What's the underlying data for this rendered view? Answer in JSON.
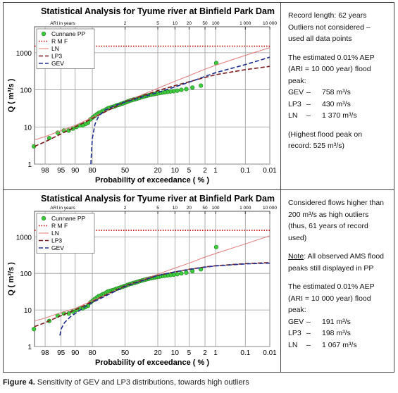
{
  "chart_data": [
    {
      "type": "line",
      "title": "Statistical Analysis for Tyume river at Binfield Park Dam",
      "xlabel": "Probability of exceedance ( % )",
      "ylabel": "Q  ( m³/s )",
      "x2label": "ARI in years",
      "xlim": [
        99,
        0.01
      ],
      "ylim": [
        1,
        5000
      ],
      "log_y": true,
      "grid": true,
      "legend": "upper left",
      "xticks": [
        98,
        95,
        90,
        80,
        50,
        20,
        10,
        5,
        2,
        1,
        0.1,
        0.01
      ],
      "x2ticks": [
        {
          "value": 50,
          "label": "2"
        },
        {
          "value": 20,
          "label": "5"
        },
        {
          "value": 10,
          "label": "10"
        },
        {
          "value": 5,
          "label": "20"
        },
        {
          "value": 2,
          "label": "50"
        },
        {
          "value": 1,
          "label": "100"
        },
        {
          "value": 0.1,
          "label": "1 000"
        },
        {
          "value": 0.01,
          "label": "10 000"
        }
      ],
      "yticks": [
        1,
        10,
        100,
        1000
      ],
      "series": [
        {
          "name": "Cunnane PP",
          "style": "markers",
          "color": "#3ccc3c",
          "x": [
            0.96,
            2.57,
            4.18,
            5.79,
            7.4,
            9.0,
            10.61,
            12.22,
            13.83,
            15.43,
            17.04,
            18.65,
            20.26,
            21.86,
            23.47,
            25.08,
            26.69,
            28.3,
            29.9,
            31.51,
            33.12,
            34.73,
            36.33,
            37.94,
            39.55,
            41.16,
            42.77,
            44.37,
            45.98,
            47.59,
            49.2,
            50.8,
            52.41,
            54.02,
            55.63,
            57.23,
            58.84,
            60.45,
            62.06,
            63.67,
            65.27,
            66.88,
            68.49,
            70.1,
            71.7,
            73.31,
            74.92,
            76.53,
            78.14,
            79.74,
            81.35,
            82.96,
            84.57,
            86.17,
            87.78,
            89.39,
            91.0,
            92.6,
            94.21,
            95.82,
            97.43,
            99.04
          ],
          "values": [
            525,
            130,
            115,
            105,
            100,
            95,
            92,
            90,
            88,
            86,
            84,
            82,
            80,
            78,
            76,
            74,
            72,
            70,
            68,
            66,
            64,
            62,
            60,
            58,
            56,
            55,
            53,
            52,
            50,
            48,
            46,
            45,
            43,
            42,
            40,
            39,
            38,
            36,
            35,
            34,
            33,
            32,
            30,
            28,
            27,
            25,
            24,
            22,
            20,
            18,
            16,
            13,
            12,
            11,
            11,
            10,
            9,
            8,
            8,
            7,
            5,
            3
          ]
        },
        {
          "name": "R M F",
          "style": "dotted",
          "color": "#c00000",
          "x": [
            99,
            0.01
          ],
          "values": [
            1500,
            1500
          ]
        },
        {
          "name": "LN",
          "style": "solid",
          "color": "#e07a7a",
          "x": [
            99,
            98,
            95,
            90,
            80,
            50,
            20,
            10,
            5,
            2,
            1,
            0.1,
            0.01
          ],
          "values": [
            4.5,
            5.5,
            8,
            11,
            18,
            48,
            110,
            170,
            240,
            360,
            460,
            850,
            1370
          ]
        },
        {
          "name": "LP3",
          "style": "dashed",
          "color": "#7a1a1a",
          "x": [
            99,
            98,
            95,
            90,
            80,
            50,
            20,
            10,
            5,
            2,
            1,
            0.1,
            0.01
          ],
          "values": [
            3,
            4,
            6.5,
            10,
            17,
            48,
            95,
            130,
            165,
            215,
            255,
            350,
            430
          ]
        },
        {
          "name": "GEV",
          "style": "dashed",
          "color": "#1f2f8f",
          "x": [
            81,
            80.5,
            80,
            78,
            75,
            70,
            60,
            50,
            20,
            10,
            5,
            2,
            1,
            0.1,
            0.01
          ],
          "values": [
            1,
            2.5,
            5,
            12,
            20,
            28,
            38,
            47,
            85,
            120,
            160,
            230,
            290,
            480,
            758
          ]
        }
      ]
    },
    {
      "type": "line",
      "title": "Statistical Analysis for Tyume river at Binfield Park Dam",
      "xlabel": "Probability of exceedance ( % )",
      "ylabel": "Q  ( m³/s )",
      "x2label": "ARI in years",
      "xlim": [
        99,
        0.01
      ],
      "ylim": [
        1,
        5000
      ],
      "log_y": true,
      "grid": true,
      "legend": "upper left",
      "xticks": [
        98,
        95,
        90,
        80,
        50,
        20,
        10,
        5,
        2,
        1,
        0.1,
        0.01
      ],
      "x2ticks": [
        {
          "value": 50,
          "label": "2"
        },
        {
          "value": 20,
          "label": "5"
        },
        {
          "value": 10,
          "label": "10"
        },
        {
          "value": 5,
          "label": "20"
        },
        {
          "value": 2,
          "label": "50"
        },
        {
          "value": 1,
          "label": "100"
        },
        {
          "value": 0.1,
          "label": "1 000"
        },
        {
          "value": 0.01,
          "label": "10 000"
        }
      ],
      "yticks": [
        1,
        10,
        100,
        1000
      ],
      "series": [
        {
          "name": "Cunnane PP",
          "style": "markers",
          "color": "#3ccc3c",
          "x": [
            0.96,
            2.57,
            4.18,
            5.79,
            7.4,
            9.0,
            10.61,
            12.22,
            13.83,
            15.43,
            17.04,
            18.65,
            20.26,
            21.86,
            23.47,
            25.08,
            26.69,
            28.3,
            29.9,
            31.51,
            33.12,
            34.73,
            36.33,
            37.94,
            39.55,
            41.16,
            42.77,
            44.37,
            45.98,
            47.59,
            49.2,
            50.8,
            52.41,
            54.02,
            55.63,
            57.23,
            58.84,
            60.45,
            62.06,
            63.67,
            65.27,
            66.88,
            68.49,
            70.1,
            71.7,
            73.31,
            74.92,
            76.53,
            78.14,
            79.74,
            81.35,
            82.96,
            84.57,
            86.17,
            87.78,
            89.39,
            91.0,
            92.6,
            94.21,
            95.82,
            97.43,
            99.04
          ],
          "values": [
            525,
            130,
            115,
            105,
            100,
            95,
            92,
            90,
            88,
            86,
            84,
            82,
            80,
            78,
            76,
            74,
            72,
            70,
            68,
            66,
            64,
            62,
            60,
            58,
            56,
            55,
            53,
            52,
            50,
            48,
            46,
            45,
            43,
            42,
            40,
            39,
            38,
            36,
            35,
            34,
            33,
            32,
            30,
            28,
            27,
            25,
            24,
            22,
            20,
            18,
            16,
            13,
            12,
            11,
            11,
            10,
            9,
            8,
            8,
            7,
            5,
            3
          ]
        },
        {
          "name": "R M F",
          "style": "dotted",
          "color": "#c00000",
          "x": [
            99,
            0.01
          ],
          "values": [
            1500,
            1500
          ]
        },
        {
          "name": "LN",
          "style": "solid",
          "color": "#e07a7a",
          "x": [
            99,
            98,
            95,
            90,
            80,
            50,
            20,
            10,
            5,
            2,
            1,
            0.1,
            0.01
          ],
          "values": [
            5,
            6,
            8.5,
            11,
            18,
            45,
            95,
            140,
            190,
            280,
            350,
            640,
            1067
          ]
        },
        {
          "name": "LP3",
          "style": "dashed",
          "color": "#7a1a1a",
          "x": [
            99,
            98,
            95,
            90,
            80,
            50,
            20,
            10,
            5,
            2,
            1,
            0.1,
            0.01
          ],
          "values": [
            3.5,
            4.5,
            7,
            10,
            17,
            46,
            88,
            110,
            130,
            150,
            162,
            185,
            198
          ]
        },
        {
          "name": "GEV",
          "style": "dashed",
          "color": "#1f2f8f",
          "x": [
            95.3,
            95,
            94,
            92,
            90,
            85,
            80,
            50,
            20,
            10,
            5,
            2,
            1,
            0.1,
            0.01
          ],
          "values": [
            2,
            3,
            4.5,
            6.5,
            8,
            12,
            16,
            44,
            88,
            110,
            128,
            148,
            160,
            182,
            191
          ]
        }
      ]
    }
  ],
  "notes": [
    {
      "blocks": [
        {
          "lines": [
            "Record length: 62 years",
            "Outliers not considered –",
            "used all data points"
          ]
        },
        {
          "lines": [
            "The estimated 0.01% AEP",
            "(ARI = 10 000 year) flood peak:"
          ],
          "estimates": [
            [
              "GEV",
              "–",
              "758 m³/s"
            ],
            [
              "LP3",
              "–",
              "430 m³/s"
            ],
            [
              "LN",
              "–",
              "1 370 m³/s"
            ]
          ]
        },
        {
          "lines": [
            "(Highest flood peak on",
            "record: 525 m³/s)"
          ]
        }
      ]
    },
    {
      "blocks": [
        {
          "lines": [
            "Considered flows higher than",
            "200 m³/s as high outliers",
            "(thus, 61 years of record",
            "used)"
          ]
        },
        {
          "label": "Note",
          "lines": [
            ": All observed AMS flood",
            "peaks still displayed in PP"
          ]
        },
        {
          "lines": [
            "The estimated 0.01% AEP",
            "(ARI = 10 000 year) flood peak:"
          ],
          "estimates": [
            [
              "GEV",
              "–",
              "191 m³/s"
            ],
            [
              "LP3",
              "–",
              "198 m³/s"
            ],
            [
              "LN",
              "–",
              "1 067 m³/s"
            ]
          ]
        }
      ]
    }
  ],
  "caption": {
    "label": "Figure 4.",
    "text": "Sensitivity of GEV and LP3 distributions, towards high outliers"
  }
}
